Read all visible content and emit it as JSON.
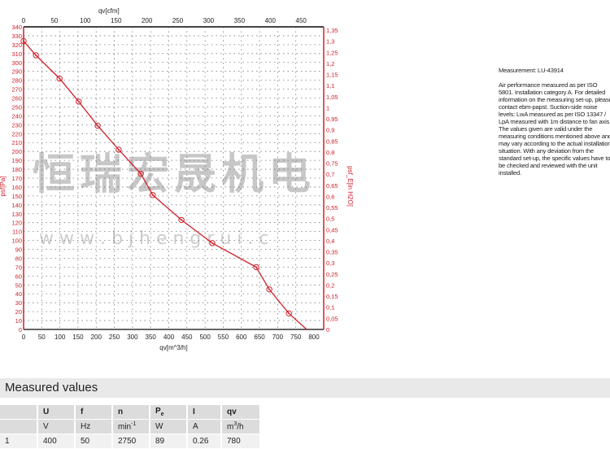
{
  "chart_data": {
    "type": "line",
    "xlabel": "qv[m^3/h]",
    "x2label": "qv[cfm]",
    "ylabel": "psf[Pa]",
    "y2label": "psf_E[in H2O]",
    "xlim": [
      0,
      800
    ],
    "x2lim": [
      0,
      470
    ],
    "ylim": [
      0,
      340
    ],
    "y2lim": [
      0,
      1.365
    ],
    "x_ticks": [
      "0",
      "50",
      "100",
      "150",
      "200",
      "250",
      "300",
      "350",
      "400",
      "450",
      "500",
      "550",
      "600",
      "650",
      "700",
      "750",
      "800"
    ],
    "x2_ticks": [
      "0",
      "50",
      "100",
      "150",
      "200",
      "250",
      "300",
      "350",
      "400",
      "450"
    ],
    "y_ticks": [
      "0",
      "10",
      "20",
      "30",
      "40",
      "50",
      "60",
      "70",
      "80",
      "90",
      "100",
      "110",
      "120",
      "130",
      "140",
      "150",
      "160",
      "170",
      "180",
      "190",
      "200",
      "210",
      "220",
      "230",
      "240",
      "250",
      "260",
      "270",
      "280",
      "290",
      "300",
      "310",
      "320",
      "330",
      "340"
    ],
    "y2_ticks": [
      "0",
      "0,05",
      "0,1",
      "0,15",
      "0,2",
      "0,25",
      "0,3",
      "0,35",
      "0,4",
      "0,45",
      "0,5",
      "0,55",
      "0,6",
      "0,65",
      "0,7",
      "0,75",
      "0,8",
      "0,85",
      "0,9",
      "0,95",
      "1",
      "1,05",
      "1,1",
      "1,15",
      "1,2",
      "1,25",
      "1,3",
      "1,35"
    ],
    "grid": true,
    "series": [
      {
        "color": "#d0202a",
        "x": [
          0,
          34,
          99,
          152,
          204,
          262,
          323,
          356,
          435,
          520,
          641,
          677,
          731,
          780
        ],
        "y": [
          324,
          308,
          282,
          256,
          229,
          202,
          175,
          151,
          123,
          97,
          70,
          45,
          18,
          0
        ],
        "markers": [
          true,
          true,
          true,
          true,
          true,
          true,
          true,
          true,
          true,
          true,
          true,
          true,
          true,
          false
        ]
      }
    ],
    "axis_color": "#d0202a"
  },
  "watermark": {
    "chinese": "恒瑞宏晟机电",
    "url": "w w w . b j h e n g r u i . c"
  },
  "note": {
    "title": "Measurement: LU-43914",
    "body": "Air performance measured as per ISO 5801. Installation category A. For detailed information on the measuring set-up, please contact ebm-papst. Suction-side noise levels: LwA measured as per ISO 13347 / LpA measured with 1m distance to fan axis. The values given are valid under the measuring conditions mentioned above and may vary according to the actual installation situation. With any deviation from the standard set-up, the specific values have to be checked and reviewed with the unit installed."
  },
  "measured": {
    "title": "Measured values",
    "headers": [
      "",
      "U",
      "f",
      "n",
      "Pe",
      "I",
      "qv"
    ],
    "units": [
      "",
      "V",
      "Hz",
      "min-1",
      "W",
      "A",
      "m3/h"
    ],
    "rows": [
      [
        "1",
        "400",
        "50",
        "2750",
        "89",
        "0.26",
        "780"
      ]
    ]
  }
}
